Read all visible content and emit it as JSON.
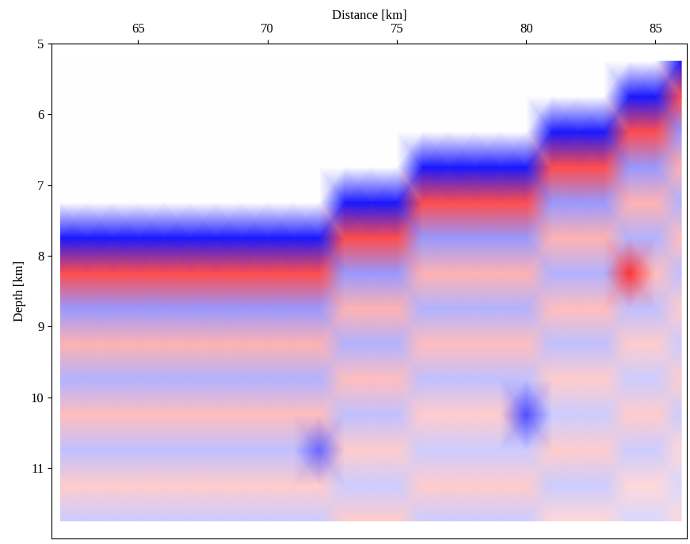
{
  "chart_data": {
    "type": "heatmap",
    "xlabel": "Distance [km]",
    "ylabel": "Depth [km]",
    "xlim": [
      61.66,
      86.2
    ],
    "ylim": [
      12,
      5
    ],
    "xticks": [
      65,
      70,
      75,
      80,
      85
    ],
    "yticks": [
      5,
      6,
      7,
      8,
      9,
      10,
      11
    ],
    "x": [
      62,
      63,
      64,
      65,
      66,
      67,
      68,
      69,
      70,
      71,
      72,
      73,
      74,
      75,
      76,
      77,
      78,
      79,
      80,
      81,
      82,
      83,
      84,
      85,
      86
    ],
    "y": [
      5.25,
      5.75,
      6.25,
      6.75,
      7.25,
      7.75,
      8.25,
      8.75,
      9.25,
      9.75,
      10.25,
      10.75,
      11.25,
      11.75
    ],
    "color_range": [
      -1,
      1
    ],
    "cells": [
      [
        0,
        0,
        0,
        0,
        0,
        0,
        0,
        0,
        0,
        0,
        0,
        0,
        0,
        0,
        0,
        0,
        0,
        0,
        0,
        0,
        0,
        0,
        0,
        0,
        -0.9
      ],
      [
        0,
        0,
        0,
        0,
        0,
        0,
        0,
        0,
        0,
        0,
        0,
        0,
        0,
        0,
        0,
        0,
        0,
        0,
        0,
        0,
        0,
        0,
        -0.9,
        -0.9,
        0.7
      ],
      [
        0,
        0,
        0,
        0,
        0,
        0,
        0,
        0,
        0,
        0,
        0,
        0,
        0,
        0,
        0,
        0,
        0,
        0,
        0,
        -0.9,
        -0.9,
        -0.9,
        0.7,
        0.7,
        -0.4
      ],
      [
        0,
        0,
        0,
        0,
        0,
        0,
        0,
        0,
        0,
        0,
        0,
        0,
        0,
        0,
        -0.9,
        -0.9,
        -0.9,
        -0.9,
        -0.9,
        0.7,
        0.7,
        0.7,
        -0.4,
        -0.4,
        0.3
      ],
      [
        0,
        0,
        0,
        0,
        0,
        0,
        0,
        0,
        0,
        0,
        0,
        -0.9,
        -0.9,
        -0.9,
        0.7,
        0.7,
        0.7,
        0.7,
        0.7,
        -0.4,
        -0.4,
        -0.4,
        0.3,
        0.3,
        -0.3
      ],
      [
        -0.9,
        -0.9,
        -0.9,
        -0.9,
        -0.9,
        -0.9,
        -0.9,
        -0.9,
        -0.9,
        -0.9,
        -0.9,
        0.7,
        0.7,
        0.7,
        -0.4,
        -0.4,
        -0.4,
        -0.4,
        -0.4,
        0.3,
        0.3,
        0.3,
        -0.3,
        -0.3,
        0.25
      ],
      [
        0.7,
        0.7,
        0.7,
        0.7,
        0.7,
        0.7,
        0.7,
        0.7,
        0.7,
        0.7,
        0.7,
        -0.4,
        -0.4,
        -0.4,
        0.3,
        0.3,
        0.3,
        0.3,
        0.3,
        -0.3,
        -0.3,
        -0.3,
        0.8,
        0.25,
        -0.25
      ],
      [
        -0.4,
        -0.4,
        -0.4,
        -0.4,
        -0.4,
        -0.4,
        -0.4,
        -0.4,
        -0.4,
        -0.4,
        -0.4,
        0.3,
        0.3,
        0.3,
        -0.3,
        -0.3,
        -0.3,
        -0.3,
        -0.3,
        0.25,
        0.25,
        0.25,
        -0.25,
        -0.25,
        0.2
      ],
      [
        0.3,
        0.3,
        0.3,
        0.3,
        0.3,
        0.3,
        0.3,
        0.3,
        0.3,
        0.3,
        0.3,
        -0.3,
        -0.3,
        -0.3,
        0.25,
        0.25,
        0.25,
        0.25,
        0.25,
        -0.25,
        -0.25,
        -0.25,
        0.2,
        0.2,
        -0.2
      ],
      [
        -0.3,
        -0.3,
        -0.3,
        -0.3,
        -0.3,
        -0.3,
        -0.3,
        -0.3,
        -0.3,
        -0.3,
        -0.3,
        0.25,
        0.25,
        0.25,
        -0.25,
        -0.25,
        -0.25,
        -0.25,
        -0.25,
        0.2,
        0.2,
        0.2,
        -0.2,
        -0.2,
        0.2
      ],
      [
        0.25,
        0.25,
        0.25,
        0.25,
        0.25,
        0.25,
        0.25,
        0.25,
        0.25,
        0.25,
        0.25,
        -0.25,
        -0.25,
        -0.25,
        0.2,
        0.2,
        0.2,
        0.2,
        -0.7,
        -0.2,
        -0.2,
        -0.2,
        0.2,
        0.2,
        -0.2
      ],
      [
        -0.25,
        -0.25,
        -0.25,
        -0.25,
        -0.25,
        -0.25,
        -0.25,
        -0.25,
        -0.25,
        -0.25,
        -0.6,
        0.2,
        0.2,
        0.2,
        -0.2,
        -0.2,
        -0.2,
        -0.2,
        -0.2,
        0.2,
        0.2,
        0.2,
        -0.2,
        -0.2,
        0.15
      ],
      [
        0.2,
        0.2,
        0.2,
        0.2,
        0.2,
        0.2,
        0.2,
        0.2,
        0.2,
        0.2,
        0.2,
        -0.2,
        -0.2,
        -0.2,
        0.2,
        0.2,
        0.2,
        0.2,
        0.2,
        -0.2,
        -0.2,
        -0.2,
        0.15,
        0.15,
        -0.15
      ],
      [
        -0.2,
        -0.2,
        -0.2,
        -0.2,
        -0.2,
        -0.2,
        -0.2,
        -0.2,
        -0.2,
        -0.2,
        -0.2,
        0.2,
        0.2,
        0.2,
        -0.2,
        -0.2,
        -0.2,
        -0.2,
        -0.2,
        0.15,
        0.15,
        0.15,
        -0.15,
        -0.15,
        0.15
      ]
    ]
  }
}
